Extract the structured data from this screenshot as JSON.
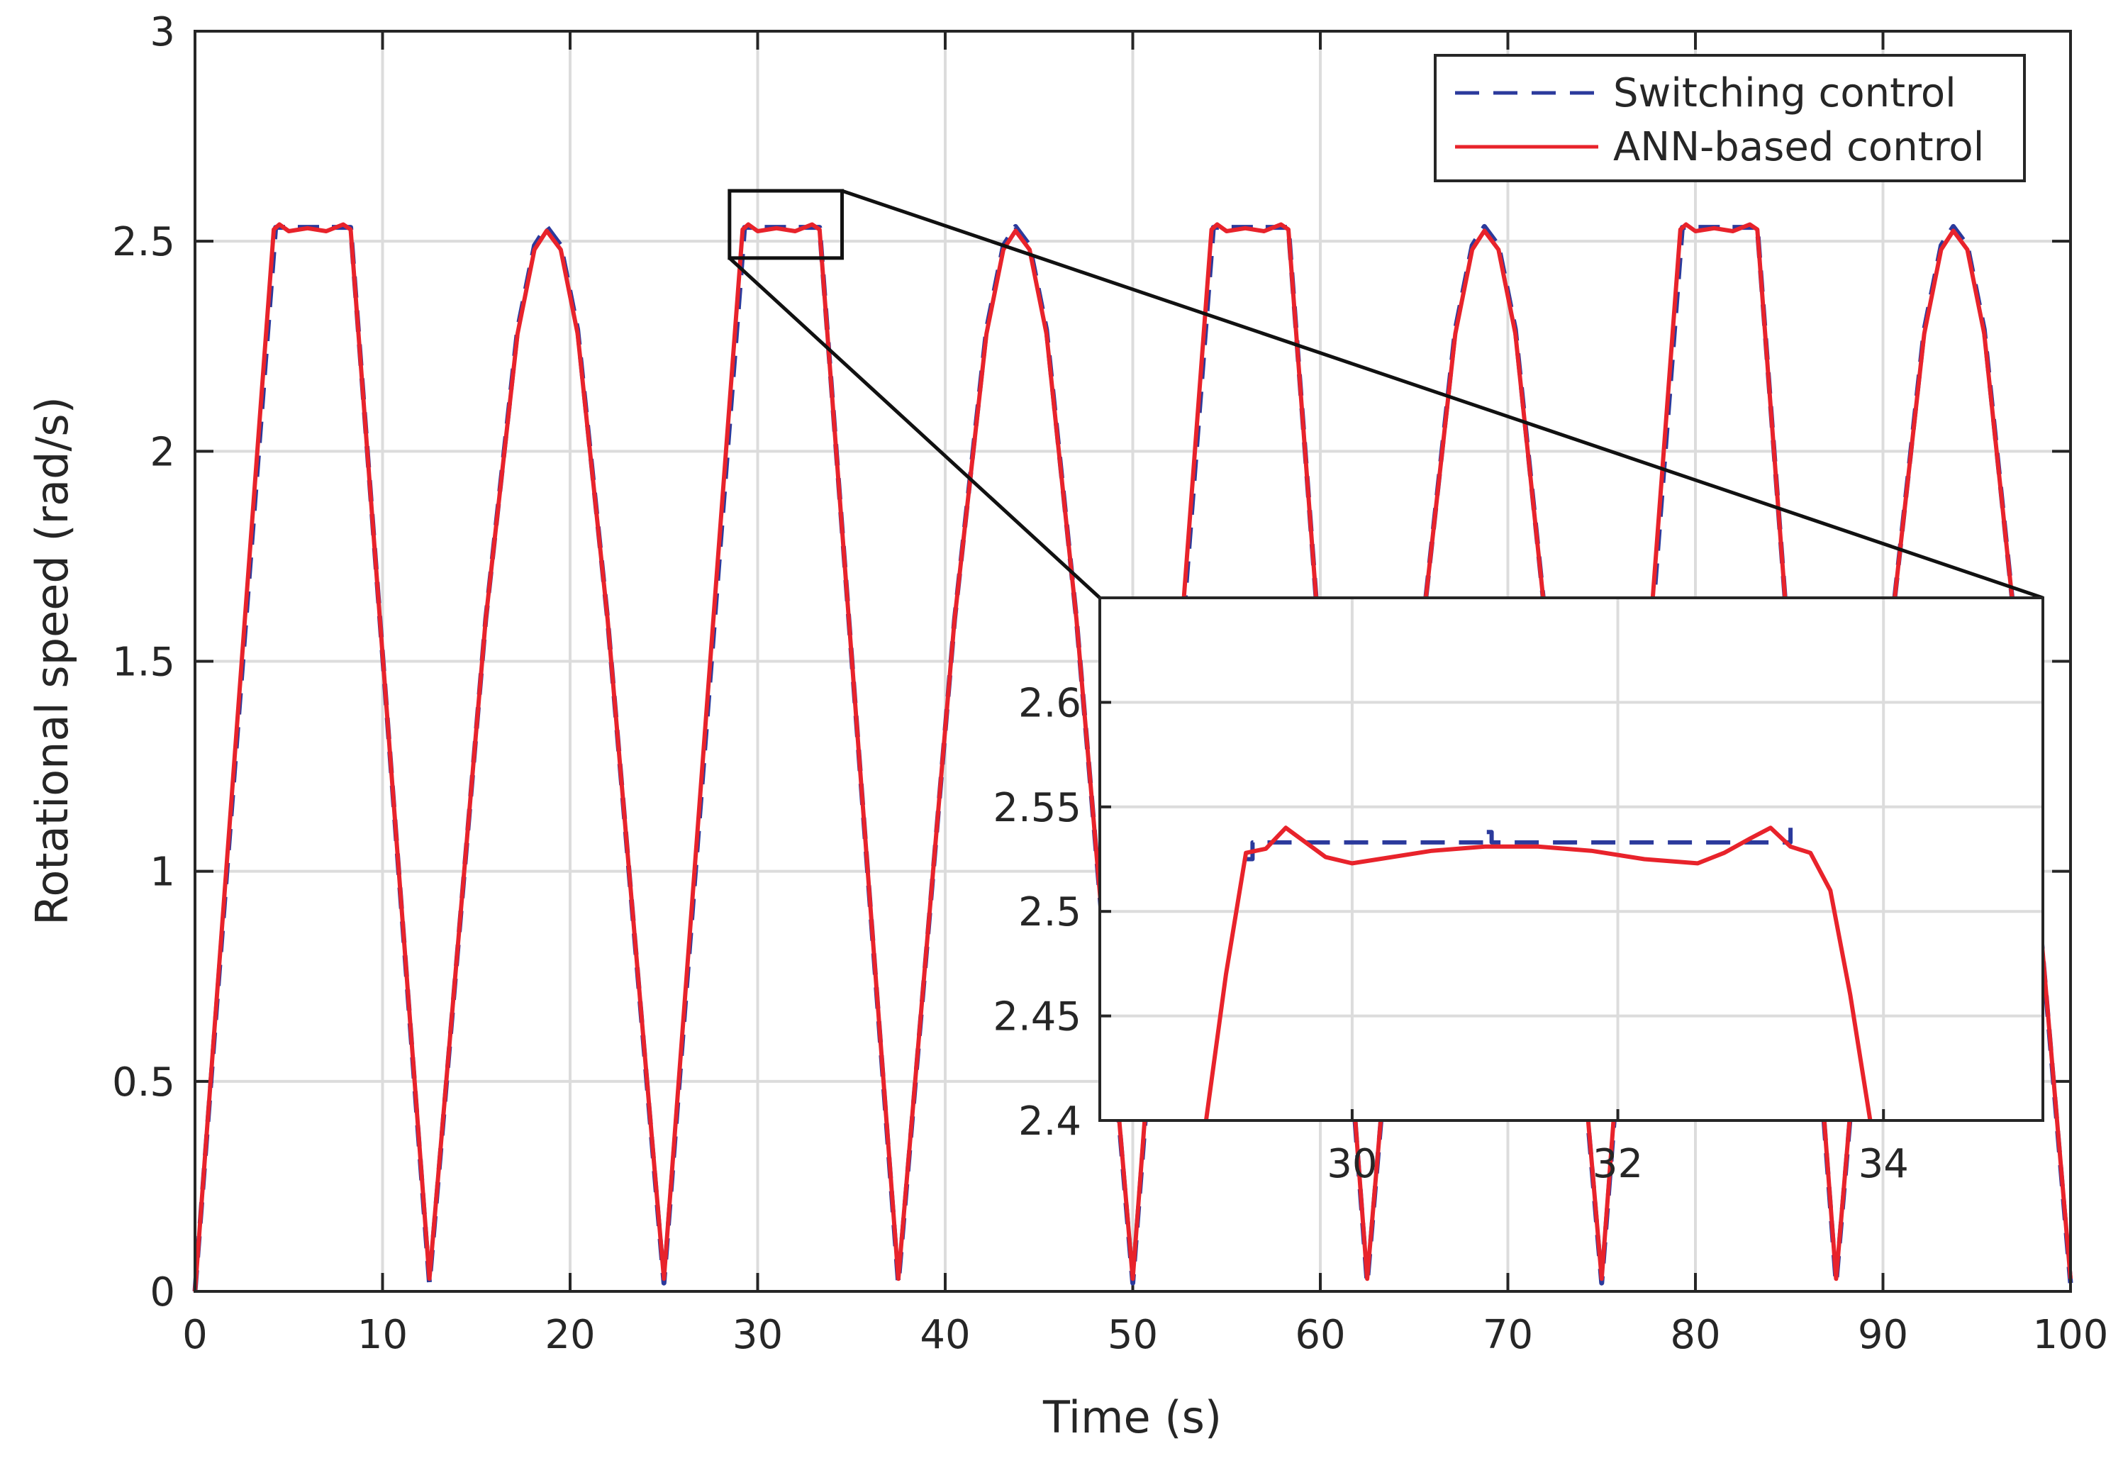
{
  "chart_data": [
    {
      "type": "line",
      "role": "main",
      "xlabel": "Time (s)",
      "ylabel": "Rotational speed (rad/s)",
      "xlim": [
        0,
        100
      ],
      "ylim": [
        0,
        3
      ],
      "xticks": [
        0,
        10,
        20,
        30,
        40,
        50,
        60,
        70,
        80,
        90,
        100
      ],
      "yticks": [
        0,
        0.5,
        1,
        1.5,
        2,
        2.5,
        3
      ],
      "xtick_labels": [
        "0",
        "10",
        "20",
        "30",
        "40",
        "50",
        "60",
        "70",
        "80",
        "90",
        "100"
      ],
      "ytick_labels": [
        "0",
        "0.5",
        "1",
        "1.5",
        "2",
        "2.5",
        "3"
      ],
      "grid": true,
      "legend_position": "top-right",
      "zoom_region": {
        "x": [
          28.5,
          34.5
        ],
        "y": [
          2.46,
          2.62
        ]
      },
      "series": [
        {
          "name": "Switching control",
          "color": "#2b3a9c",
          "style": "dashed",
          "x": [
            0,
            4.3,
            5,
            6,
            7,
            8,
            8.3,
            12.5,
            12.5,
            15.5,
            17.2,
            18.1,
            18.75,
            19.5,
            20.4,
            22,
            25,
            25,
            29.3,
            30,
            31,
            32,
            33,
            33.3,
            37.5,
            37.5,
            40.5,
            42.2,
            43.1,
            43.75,
            44.5,
            45.4,
            47,
            50,
            50,
            54.3,
            55,
            56,
            57,
            58,
            58.3,
            62.5,
            62.5,
            65.5,
            67.2,
            68.1,
            68.75,
            69.5,
            70.4,
            72,
            75,
            75,
            79.3,
            80,
            81,
            82,
            83,
            83.3,
            87.5,
            87.5,
            90.5,
            92.2,
            93.1,
            93.75,
            94.5,
            95.4,
            97,
            100
          ],
          "y": [
            0,
            2.533,
            2.533,
            2.533,
            2.533,
            2.533,
            2.533,
            0.02,
            0.02,
            1.6,
            2.29,
            2.49,
            2.535,
            2.49,
            2.29,
            1.6,
            0.02,
            0.02,
            2.533,
            2.533,
            2.533,
            2.533,
            2.533,
            2.533,
            0.02,
            0.02,
            1.6,
            2.29,
            2.49,
            2.535,
            2.49,
            2.29,
            1.6,
            0.02,
            0.02,
            2.533,
            2.533,
            2.533,
            2.533,
            2.533,
            2.533,
            0.02,
            0.02,
            1.6,
            2.29,
            2.49,
            2.535,
            2.49,
            2.29,
            1.6,
            0.02,
            0.02,
            2.533,
            2.533,
            2.533,
            2.533,
            2.533,
            2.533,
            0.02,
            0.02,
            1.6,
            2.29,
            2.49,
            2.535,
            2.49,
            2.29,
            1.6,
            0.02
          ]
        },
        {
          "name": "ANN-based control",
          "color": "#e8232b",
          "style": "solid",
          "x": [
            0,
            4.2,
            4.5,
            5,
            6,
            7,
            7.9,
            8.3,
            12.5,
            12.5,
            15.5,
            17.2,
            18.1,
            18.75,
            19.5,
            20.4,
            22,
            25,
            25,
            29.2,
            29.5,
            30,
            31,
            32,
            32.9,
            33.3,
            37.5,
            37.5,
            40.5,
            42.2,
            43.1,
            43.75,
            44.5,
            45.4,
            47,
            50,
            50,
            54.2,
            54.5,
            55,
            56,
            57,
            57.9,
            58.3,
            62.5,
            62.5,
            65.5,
            67.2,
            68.1,
            68.75,
            69.5,
            70.4,
            72,
            75,
            75,
            79.2,
            79.5,
            80,
            81,
            82,
            82.9,
            83.3,
            87.5,
            87.5,
            90.5,
            92.2,
            93.1,
            93.75,
            94.5,
            95.4,
            97,
            100
          ],
          "y": [
            0,
            2.528,
            2.54,
            2.524,
            2.531,
            2.524,
            2.54,
            2.528,
            0.03,
            0.03,
            1.6,
            2.28,
            2.48,
            2.525,
            2.48,
            2.28,
            1.6,
            0.03,
            0.03,
            2.528,
            2.54,
            2.524,
            2.531,
            2.524,
            2.54,
            2.528,
            0.03,
            0.03,
            1.6,
            2.28,
            2.48,
            2.525,
            2.48,
            2.28,
            1.6,
            0.03,
            0.03,
            2.528,
            2.54,
            2.524,
            2.531,
            2.524,
            2.54,
            2.528,
            0.03,
            0.03,
            1.6,
            2.28,
            2.48,
            2.525,
            2.48,
            2.28,
            1.6,
            0.03,
            0.03,
            2.528,
            2.54,
            2.524,
            2.531,
            2.524,
            2.54,
            2.528,
            0.03,
            0.03,
            1.6,
            2.28,
            2.48,
            2.525,
            2.48,
            2.28,
            1.6,
            0.03
          ]
        }
      ]
    },
    {
      "type": "line",
      "role": "inset",
      "xlim": [
        28.1,
        35.2
      ],
      "ylim": [
        2.4,
        2.65
      ],
      "xticks": [
        30,
        32,
        34
      ],
      "yticks": [
        2.4,
        2.45,
        2.5,
        2.55,
        2.6
      ],
      "xtick_labels": [
        "30",
        "32",
        "34"
      ],
      "ytick_labels": [
        "2.4",
        "2.45",
        "2.5",
        "2.55",
        "2.6"
      ],
      "grid": true,
      "series": [
        {
          "name": "Switching control",
          "color": "#2b3a9c",
          "style": "dashed",
          "x": [
            29.2,
            29.25,
            29.25,
            30.5,
            31.0,
            31.0,
            31.05,
            31.05,
            32.5,
            33.3,
            33.3
          ],
          "y": [
            2.525,
            2.525,
            2.533,
            2.533,
            2.533,
            2.538,
            2.538,
            2.533,
            2.533,
            2.533,
            2.54
          ],
          "note": "approximate flat reference at ~2.533 with small step glitches"
        },
        {
          "name": "ANN-based control",
          "color": "#e8232b",
          "style": "solid",
          "x": [
            28.9,
            29.05,
            29.2,
            29.35,
            29.5,
            29.65,
            29.8,
            30.0,
            30.2,
            30.6,
            31.0,
            31.4,
            31.8,
            32.2,
            32.6,
            32.8,
            33.0,
            33.15,
            33.3,
            33.45,
            33.6,
            33.75,
            33.9
          ],
          "y": [
            2.4,
            2.47,
            2.528,
            2.53,
            2.54,
            2.533,
            2.526,
            2.523,
            2.525,
            2.529,
            2.531,
            2.531,
            2.529,
            2.525,
            2.523,
            2.528,
            2.535,
            2.54,
            2.531,
            2.528,
            2.51,
            2.46,
            2.4
          ]
        }
      ]
    }
  ],
  "legend": [
    {
      "label": "Switching control",
      "color": "#2b3a9c",
      "style": "dashed"
    },
    {
      "label": "ANN-based control",
      "color": "#e8232b",
      "style": "solid"
    }
  ],
  "colors": {
    "axis": "#262626",
    "grid": "#dcdcdc",
    "switching": "#2b3a9c",
    "ann": "#e8232b"
  }
}
